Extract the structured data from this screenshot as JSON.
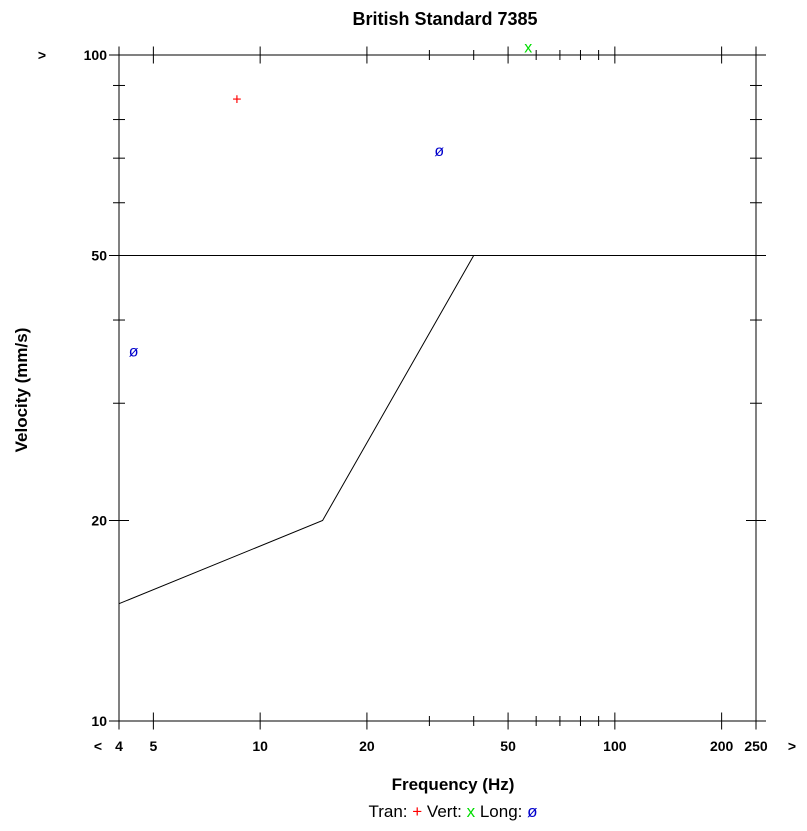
{
  "chart_data": {
    "type": "scatter",
    "title": "British Standard 7385",
    "xlabel": "Frequency (Hz)",
    "ylabel": "Velocity (mm/s)",
    "x_scale": "log",
    "y_scale": "log",
    "xlim": [
      4,
      250
    ],
    "ylim": [
      10,
      100
    ],
    "x_tick_labels": [
      {
        "value": 4,
        "label": "4"
      },
      {
        "value": 5,
        "label": "5"
      },
      {
        "value": 10,
        "label": "10"
      },
      {
        "value": 20,
        "label": "20"
      },
      {
        "value": 50,
        "label": "50"
      },
      {
        "value": 100,
        "label": "100"
      },
      {
        "value": 200,
        "label": "200"
      },
      {
        "value": 250,
        "label": "250"
      }
    ],
    "x_minor_ticks": [
      30,
      40,
      60,
      70,
      80,
      90
    ],
    "y_tick_labels": [
      {
        "value": 10,
        "label": "10"
      },
      {
        "value": 20,
        "label": "20"
      },
      {
        "value": 50,
        "label": "50"
      },
      {
        "value": 100,
        "label": "100"
      }
    ],
    "y_minor_ticks": [
      30,
      40,
      60,
      70,
      80,
      90
    ],
    "x_under_label": "<",
    "x_over_label": ">",
    "y_over_label": ">",
    "threshold_lines": [
      {
        "x": [
          4,
          15,
          40,
          250
        ],
        "y": [
          15,
          20,
          50,
          50
        ],
        "color": "#000000"
      },
      {
        "x": [
          4,
          250
        ],
        "y": [
          50,
          50
        ],
        "color": "#000000"
      }
    ],
    "series": [
      {
        "name": "Tran",
        "marker": "+",
        "color": "#ff0000",
        "points": [
          {
            "x": 8.6,
            "y": 86
          }
        ]
      },
      {
        "name": "Vert",
        "marker": "x",
        "color": "#00dd00",
        "points": [
          {
            "x": 57,
            "y": 103
          }
        ]
      },
      {
        "name": "Long",
        "marker": "ø",
        "color": "#0000cc",
        "points": [
          {
            "x": 4.4,
            "y": 36
          },
          {
            "x": 32,
            "y": 72
          }
        ]
      }
    ],
    "legend": {
      "placement": "bottom-center",
      "items": [
        {
          "label": "Tran:",
          "symbol": "+",
          "color": "#ff0000"
        },
        {
          "label": "Vert:",
          "symbol": "x",
          "color": "#00dd00"
        },
        {
          "label": "Long:",
          "symbol": "ø",
          "color": "#0000cc"
        }
      ]
    },
    "grid": false
  }
}
